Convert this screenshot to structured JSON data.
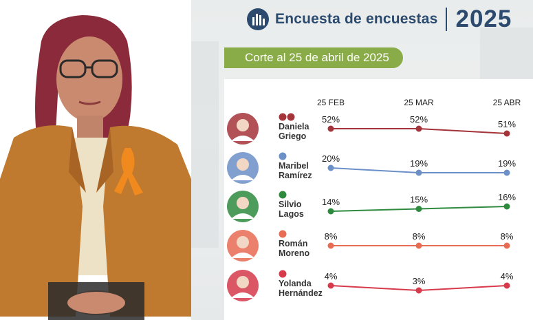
{
  "header": {
    "brand": "Encuesta de encuestas",
    "year": "2025"
  },
  "cutoff_label": "Corte al 25 de abril de 2025",
  "colors": {
    "brand_blue": "#2b4a6e",
    "cutoff_green": "#8aac48"
  },
  "chart_data": {
    "type": "line",
    "x": [
      "25 FEB",
      "25 MAR",
      "25 ABR"
    ],
    "series": [
      {
        "name": "Daniela Griego",
        "name_lines": [
          "Daniela",
          "Griego"
        ],
        "values": [
          52,
          52,
          51
        ],
        "labels": [
          "52%",
          "52%",
          "51%"
        ],
        "color": "#a4343a",
        "party_icons": [
          "morena-logo-icon",
          "pvem-logo-icon"
        ]
      },
      {
        "name": "Maribel Ramírez",
        "name_lines": [
          "Maribel",
          "Ramírez"
        ],
        "values": [
          20,
          19,
          19
        ],
        "labels": [
          "20%",
          "19%",
          "19%"
        ],
        "color": "#6b8fc7",
        "party_icons": [
          "pan-logo-icon"
        ]
      },
      {
        "name": "Silvio Lagos",
        "name_lines": [
          "Silvio",
          "Lagos"
        ],
        "values": [
          14,
          15,
          16
        ],
        "labels": [
          "14%",
          "15%",
          "16%"
        ],
        "color": "#2e8b3e",
        "party_icons": [
          "pri-logo-icon"
        ]
      },
      {
        "name": "Román Moreno",
        "name_lines": [
          "Román",
          "Moreno"
        ],
        "values": [
          8,
          8,
          8
        ],
        "labels": [
          "8%",
          "8%",
          "8%"
        ],
        "color": "#e86b53",
        "party_icons": [
          "mc-logo-icon"
        ]
      },
      {
        "name": "Yolanda Hernández",
        "name_lines": [
          "Yolanda",
          "Hernández"
        ],
        "values": [
          4,
          3,
          4
        ],
        "labels": [
          "4%",
          "3%",
          "4%"
        ],
        "color": "#d63a4b",
        "party_icons": [
          "pt-logo-icon"
        ]
      }
    ]
  }
}
